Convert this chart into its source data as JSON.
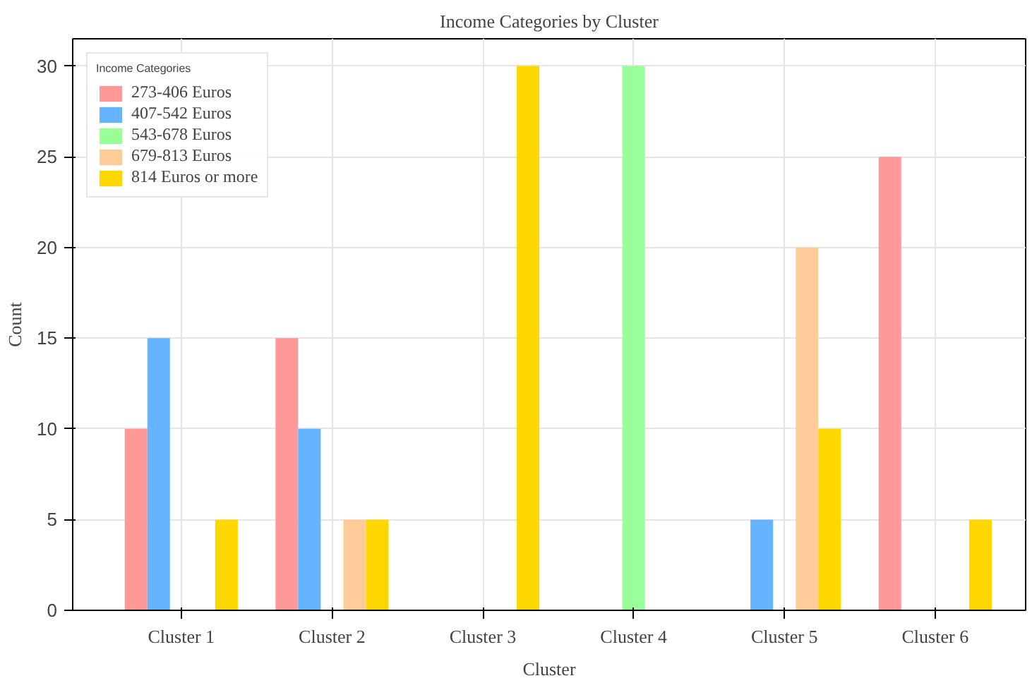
{
  "chart_data": {
    "type": "bar",
    "title": "Income Categories by Cluster",
    "xlabel": "Cluster",
    "ylabel": "Count",
    "legend_title": "Income Categories",
    "categories": [
      "Cluster 1",
      "Cluster 2",
      "Cluster 3",
      "Cluster 4",
      "Cluster 5",
      "Cluster 6"
    ],
    "series": [
      {
        "name": "273-406 Euros",
        "color": "#ff9999",
        "values": [
          10,
          15,
          0,
          0,
          0,
          25
        ]
      },
      {
        "name": "407-542 Euros",
        "color": "#66b3ff",
        "values": [
          15,
          10,
          0,
          0,
          5,
          0
        ]
      },
      {
        "name": "543-678 Euros",
        "color": "#99ff99",
        "values": [
          0,
          0,
          0,
          30,
          0,
          0
        ]
      },
      {
        "name": "679-813 Euros",
        "color": "#ffcc99",
        "values": [
          0,
          5,
          0,
          0,
          20,
          0
        ]
      },
      {
        "name": "814 Euros or more",
        "color": "#ffd700",
        "values": [
          5,
          5,
          30,
          0,
          10,
          5
        ]
      }
    ],
    "ylim": [
      0,
      31.5
    ],
    "yticks": [
      0,
      5,
      10,
      15,
      20,
      25,
      30
    ],
    "grid": true,
    "legend": "top left"
  }
}
